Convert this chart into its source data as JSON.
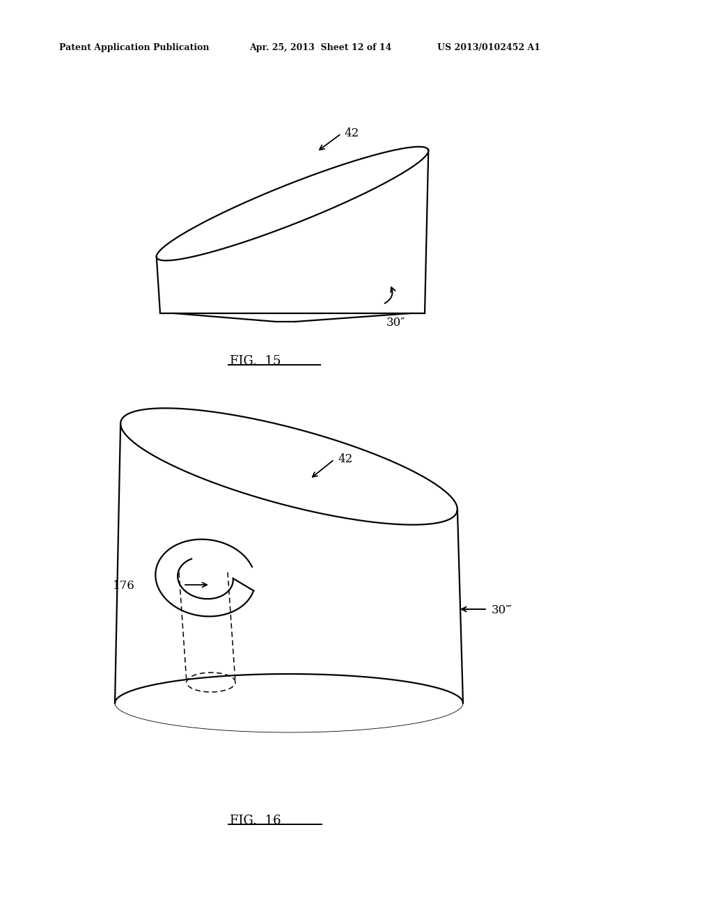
{
  "background_color": "#ffffff",
  "header_left": "Patent Application Publication",
  "header_center": "Apr. 25, 2013  Sheet 12 of 14",
  "header_right": "US 2013/0102452 A1",
  "fig15_label": "FIG.  15",
  "fig16_label": "FIG.  16",
  "label_42_fig15": "42",
  "label_30pp": "30″",
  "label_42_fig16": "42",
  "label_176": "176",
  "label_30ppp": "30‴"
}
